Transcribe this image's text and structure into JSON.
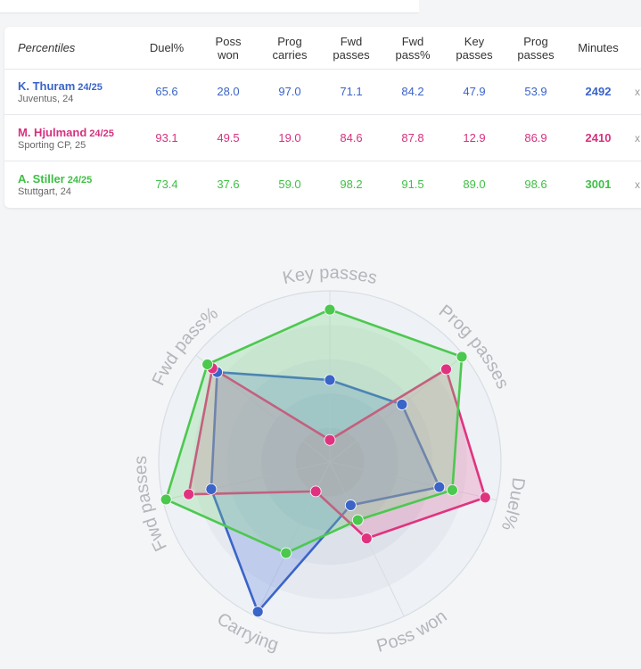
{
  "table": {
    "header_first": "Percentiles",
    "columns": [
      "Duel%",
      "Poss\nwon",
      "Prog\ncarries",
      "Fwd\npasses",
      "Fwd\npass%",
      "Key\npasses",
      "Prog\npasses",
      "Minutes"
    ],
    "players": [
      {
        "name": "K. Thuram",
        "season": "24/25",
        "club": "Juventus, 24",
        "color": "#3a64c8",
        "values": [
          "65.6",
          "28.0",
          "97.0",
          "71.1",
          "84.2",
          "47.9",
          "53.9",
          "2492"
        ]
      },
      {
        "name": "M. Hjulmand",
        "season": "24/25",
        "club": "Sporting CP, 25",
        "color": "#d6317f",
        "values": [
          "93.1",
          "49.5",
          "19.0",
          "84.6",
          "87.8",
          "12.9",
          "86.9",
          "2410"
        ]
      },
      {
        "name": "A. Stiller",
        "season": "24/25",
        "club": "Stuttgart, 24",
        "color": "#3fbf45",
        "values": [
          "73.4",
          "37.6",
          "59.0",
          "98.2",
          "91.5",
          "89.0",
          "98.6",
          "3001"
        ]
      }
    ],
    "remove_symbol": "x"
  },
  "chart_data": {
    "type": "radar",
    "axes": [
      "Key passes",
      "Prog passes",
      "Duel%",
      "Poss won",
      "Carrying",
      "Fwd passes",
      "Fwd pass%"
    ],
    "range": [
      0,
      100
    ],
    "series": [
      {
        "name": "K. Thuram",
        "color": "#3a64c8",
        "fill": "#5b7fe0",
        "values": [
          47.9,
          53.9,
          65.6,
          28.0,
          97.0,
          71.1,
          84.2
        ]
      },
      {
        "name": "M. Hjulmand",
        "color": "#e0337f",
        "fill": "#e86aa2",
        "values": [
          12.9,
          86.9,
          93.1,
          49.5,
          19.0,
          84.6,
          87.8
        ]
      },
      {
        "name": "A. Stiller",
        "color": "#4cc84f",
        "fill": "#7ad87c",
        "values": [
          89.0,
          98.6,
          73.4,
          37.6,
          59.0,
          98.2,
          91.5
        ]
      }
    ]
  }
}
